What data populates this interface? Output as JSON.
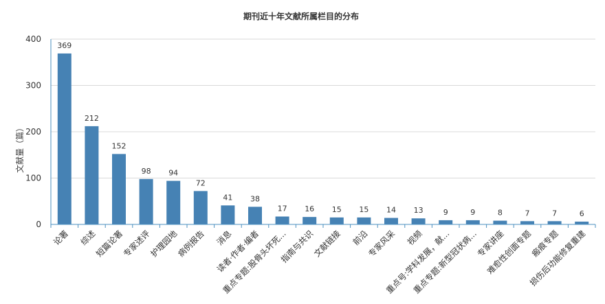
{
  "chart_data": {
    "type": "bar",
    "title": "期刊近十年文献所属栏目的分布",
    "xlabel": "",
    "ylabel": "文献量（篇）",
    "ylim": [
      0,
      400
    ],
    "yticks": [
      0,
      100,
      200,
      300,
      400
    ],
    "grid": true,
    "bar_color": "#4682b4",
    "categories": [
      "论著",
      "综述",
      "短篇论著",
      "专家述评",
      "护理园地",
      "病例报告",
      "消息",
      "读者·作者·编者",
      "重点专题:股骨头坏死...",
      "指南与共识",
      "文献链接",
      "前沿",
      "专家风采",
      "视频",
      "重点号:学科发展，献...",
      "重点专题:新型冠状病...",
      "专家讲座",
      "难愈性创面专题",
      "瘢痕专题",
      "损伤后功能修复重建"
    ],
    "values": [
      369,
      212,
      152,
      98,
      94,
      72,
      41,
      38,
      17,
      16,
      15,
      15,
      14,
      13,
      9,
      9,
      8,
      7,
      7,
      6
    ]
  }
}
